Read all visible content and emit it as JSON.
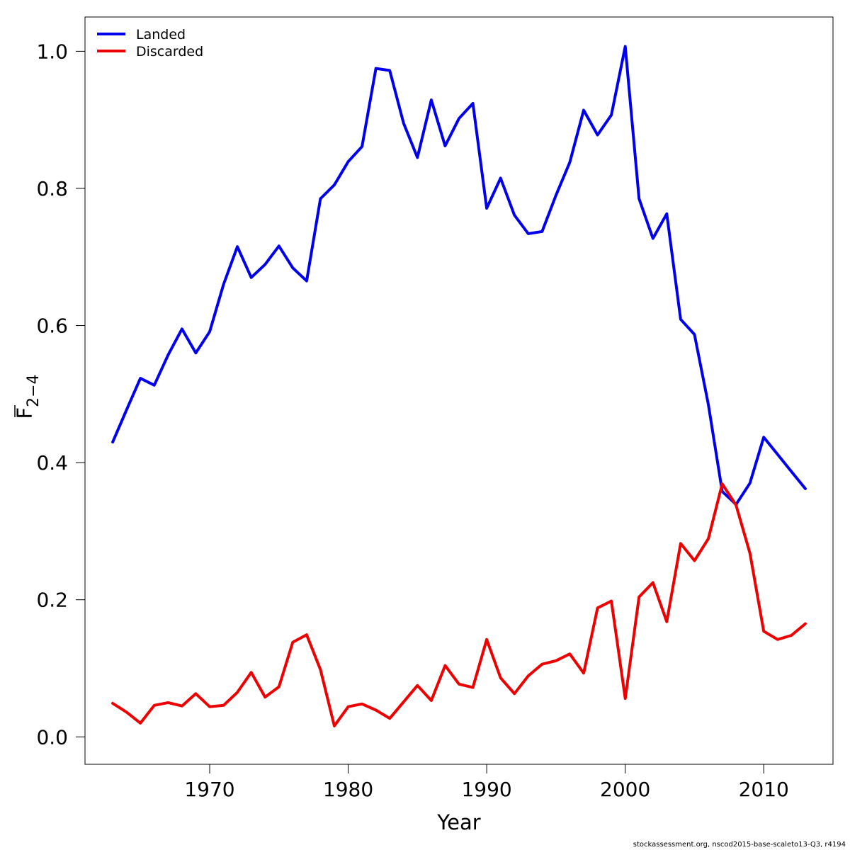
{
  "chart_data": {
    "type": "line",
    "xlabel": "Year",
    "ylabel_main": "F",
    "ylabel_sub": "2−4",
    "xlim": [
      1961,
      2015
    ],
    "ylim": [
      -0.04,
      1.05
    ],
    "xticks": [
      1970,
      1980,
      1990,
      2000,
      2010
    ],
    "xtick_labels": [
      "1970",
      "1980",
      "1990",
      "2000",
      "2010"
    ],
    "yticks": [
      0.0,
      0.2,
      0.4,
      0.6,
      0.8,
      1.0
    ],
    "ytick_labels": [
      "0.0",
      "0.2",
      "0.4",
      "0.6",
      "0.8",
      "1.0"
    ],
    "grid": false,
    "legend_position": "top-left",
    "x": [
      1963,
      1964,
      1965,
      1966,
      1967,
      1968,
      1969,
      1970,
      1971,
      1972,
      1973,
      1974,
      1975,
      1976,
      1977,
      1978,
      1979,
      1980,
      1981,
      1982,
      1983,
      1984,
      1985,
      1986,
      1987,
      1988,
      1989,
      1990,
      1991,
      1992,
      1993,
      1994,
      1995,
      1996,
      1997,
      1998,
      1999,
      2000,
      2001,
      2002,
      2003,
      2004,
      2005,
      2006,
      2007,
      2008,
      2009,
      2010,
      2011,
      2012,
      2013
    ],
    "series": [
      {
        "name": "Landed",
        "color": "#0000ee",
        "values": [
          0.43,
          0.477,
          0.523,
          0.513,
          0.557,
          0.595,
          0.56,
          0.591,
          0.66,
          0.715,
          0.67,
          0.689,
          0.716,
          0.684,
          0.665,
          0.785,
          0.805,
          0.839,
          0.861,
          0.975,
          0.972,
          0.895,
          0.845,
          0.929,
          0.862,
          0.902,
          0.924,
          0.771,
          0.815,
          0.761,
          0.734,
          0.737,
          0.79,
          0.838,
          0.914,
          0.878,
          0.907,
          1.007,
          0.785,
          0.727,
          0.763,
          0.609,
          0.587,
          0.485,
          0.358,
          0.339,
          0.37,
          0.437,
          0.412,
          0.387,
          0.362
        ]
      },
      {
        "name": "Discarded",
        "color": "#ee0000",
        "values": [
          0.049,
          0.036,
          0.02,
          0.046,
          0.05,
          0.045,
          0.063,
          0.044,
          0.046,
          0.065,
          0.094,
          0.058,
          0.073,
          0.138,
          0.149,
          0.098,
          0.016,
          0.044,
          0.048,
          0.039,
          0.027,
          0.051,
          0.075,
          0.053,
          0.104,
          0.077,
          0.072,
          0.142,
          0.086,
          0.063,
          0.089,
          0.106,
          0.111,
          0.121,
          0.093,
          0.188,
          0.198,
          0.056,
          0.204,
          0.225,
          0.168,
          0.282,
          0.257,
          0.289,
          0.369,
          0.338,
          0.268,
          0.154,
          0.142,
          0.148,
          0.165
        ]
      }
    ]
  },
  "footer": "stockassessment.org, nscod2015-base-scaleto13-Q3, r4194"
}
